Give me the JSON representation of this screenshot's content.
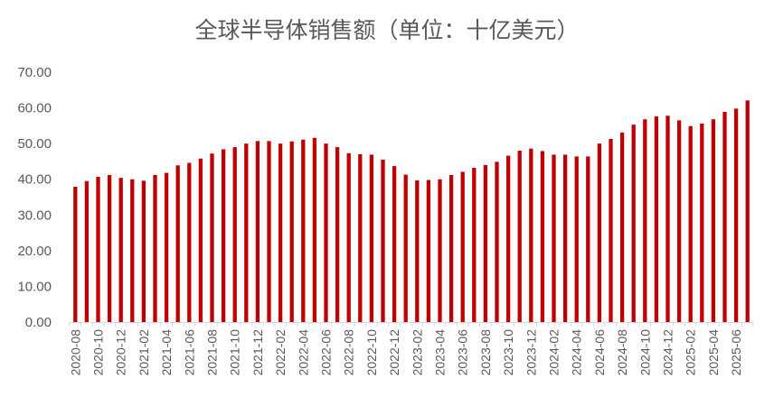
{
  "chart_data": {
    "type": "bar",
    "title": "全球半导体销售额（单位：十亿美元）",
    "xlabel": "",
    "ylabel": "",
    "ylim": [
      0,
      70
    ],
    "yticks": [
      "0.00",
      "10.00",
      "20.00",
      "30.00",
      "40.00",
      "50.00",
      "60.00",
      "70.00"
    ],
    "grid": false,
    "legend": "none",
    "bar_color": "#C00000",
    "categories": [
      "2020-08",
      "2020-09",
      "2020-10",
      "2020-11",
      "2020-12",
      "2021-01",
      "2021-02",
      "2021-03",
      "2021-04",
      "2021-05",
      "2021-06",
      "2021-07",
      "2021-08",
      "2021-09",
      "2021-10",
      "2021-11",
      "2021-12",
      "2022-01",
      "2022-02",
      "2022-03",
      "2022-04",
      "2022-05",
      "2022-06",
      "2022-07",
      "2022-08",
      "2022-09",
      "2022-10",
      "2022-11",
      "2022-12",
      "2023-01",
      "2023-02",
      "2023-03",
      "2023-04",
      "2023-05",
      "2023-06",
      "2023-07",
      "2023-08",
      "2023-09",
      "2023-10",
      "2023-11",
      "2023-12",
      "2024-01",
      "2024-02",
      "2024-03",
      "2024-04",
      "2024-05",
      "2024-06",
      "2024-07",
      "2024-08",
      "2024-09",
      "2024-10",
      "2024-11",
      "2024-12",
      "2025-01",
      "2025-02",
      "2025-03",
      "2025-04",
      "2025-05",
      "2025-06",
      "2025-07"
    ],
    "values": [
      37.9,
      39.5,
      40.7,
      41.2,
      40.4,
      40.0,
      39.6,
      41.2,
      41.8,
      43.9,
      44.6,
      45.8,
      47.2,
      48.4,
      49.0,
      50.0,
      50.7,
      50.7,
      50.0,
      50.6,
      51.1,
      51.6,
      50.0,
      49.0,
      47.3,
      47.0,
      46.9,
      45.5,
      43.7,
      41.3,
      39.7,
      39.8,
      40.0,
      41.2,
      42.1,
      43.2,
      44.0,
      44.9,
      46.6,
      48.0,
      48.6,
      47.9,
      46.9,
      46.9,
      46.4,
      46.4,
      50.0,
      51.3,
      53.1,
      55.3,
      56.8,
      57.6,
      57.8,
      56.5,
      54.9,
      55.6,
      56.8,
      58.9,
      59.8,
      62.1
    ],
    "xtick_labels": [
      "2020-08",
      "2020-10",
      "2020-12",
      "2021-02",
      "2021-04",
      "2021-06",
      "2021-08",
      "2021-10",
      "2021-12",
      "2022-02",
      "2022-04",
      "2022-06",
      "2022-08",
      "2022-10",
      "2022-12",
      "2023-02",
      "2023-04",
      "2023-06",
      "2023-08",
      "2023-10",
      "2023-12",
      "2024-02",
      "2024-04",
      "2024-06",
      "2024-08",
      "2024-10",
      "2024-12",
      "2025-02",
      "2025-04",
      "2025-06"
    ]
  }
}
